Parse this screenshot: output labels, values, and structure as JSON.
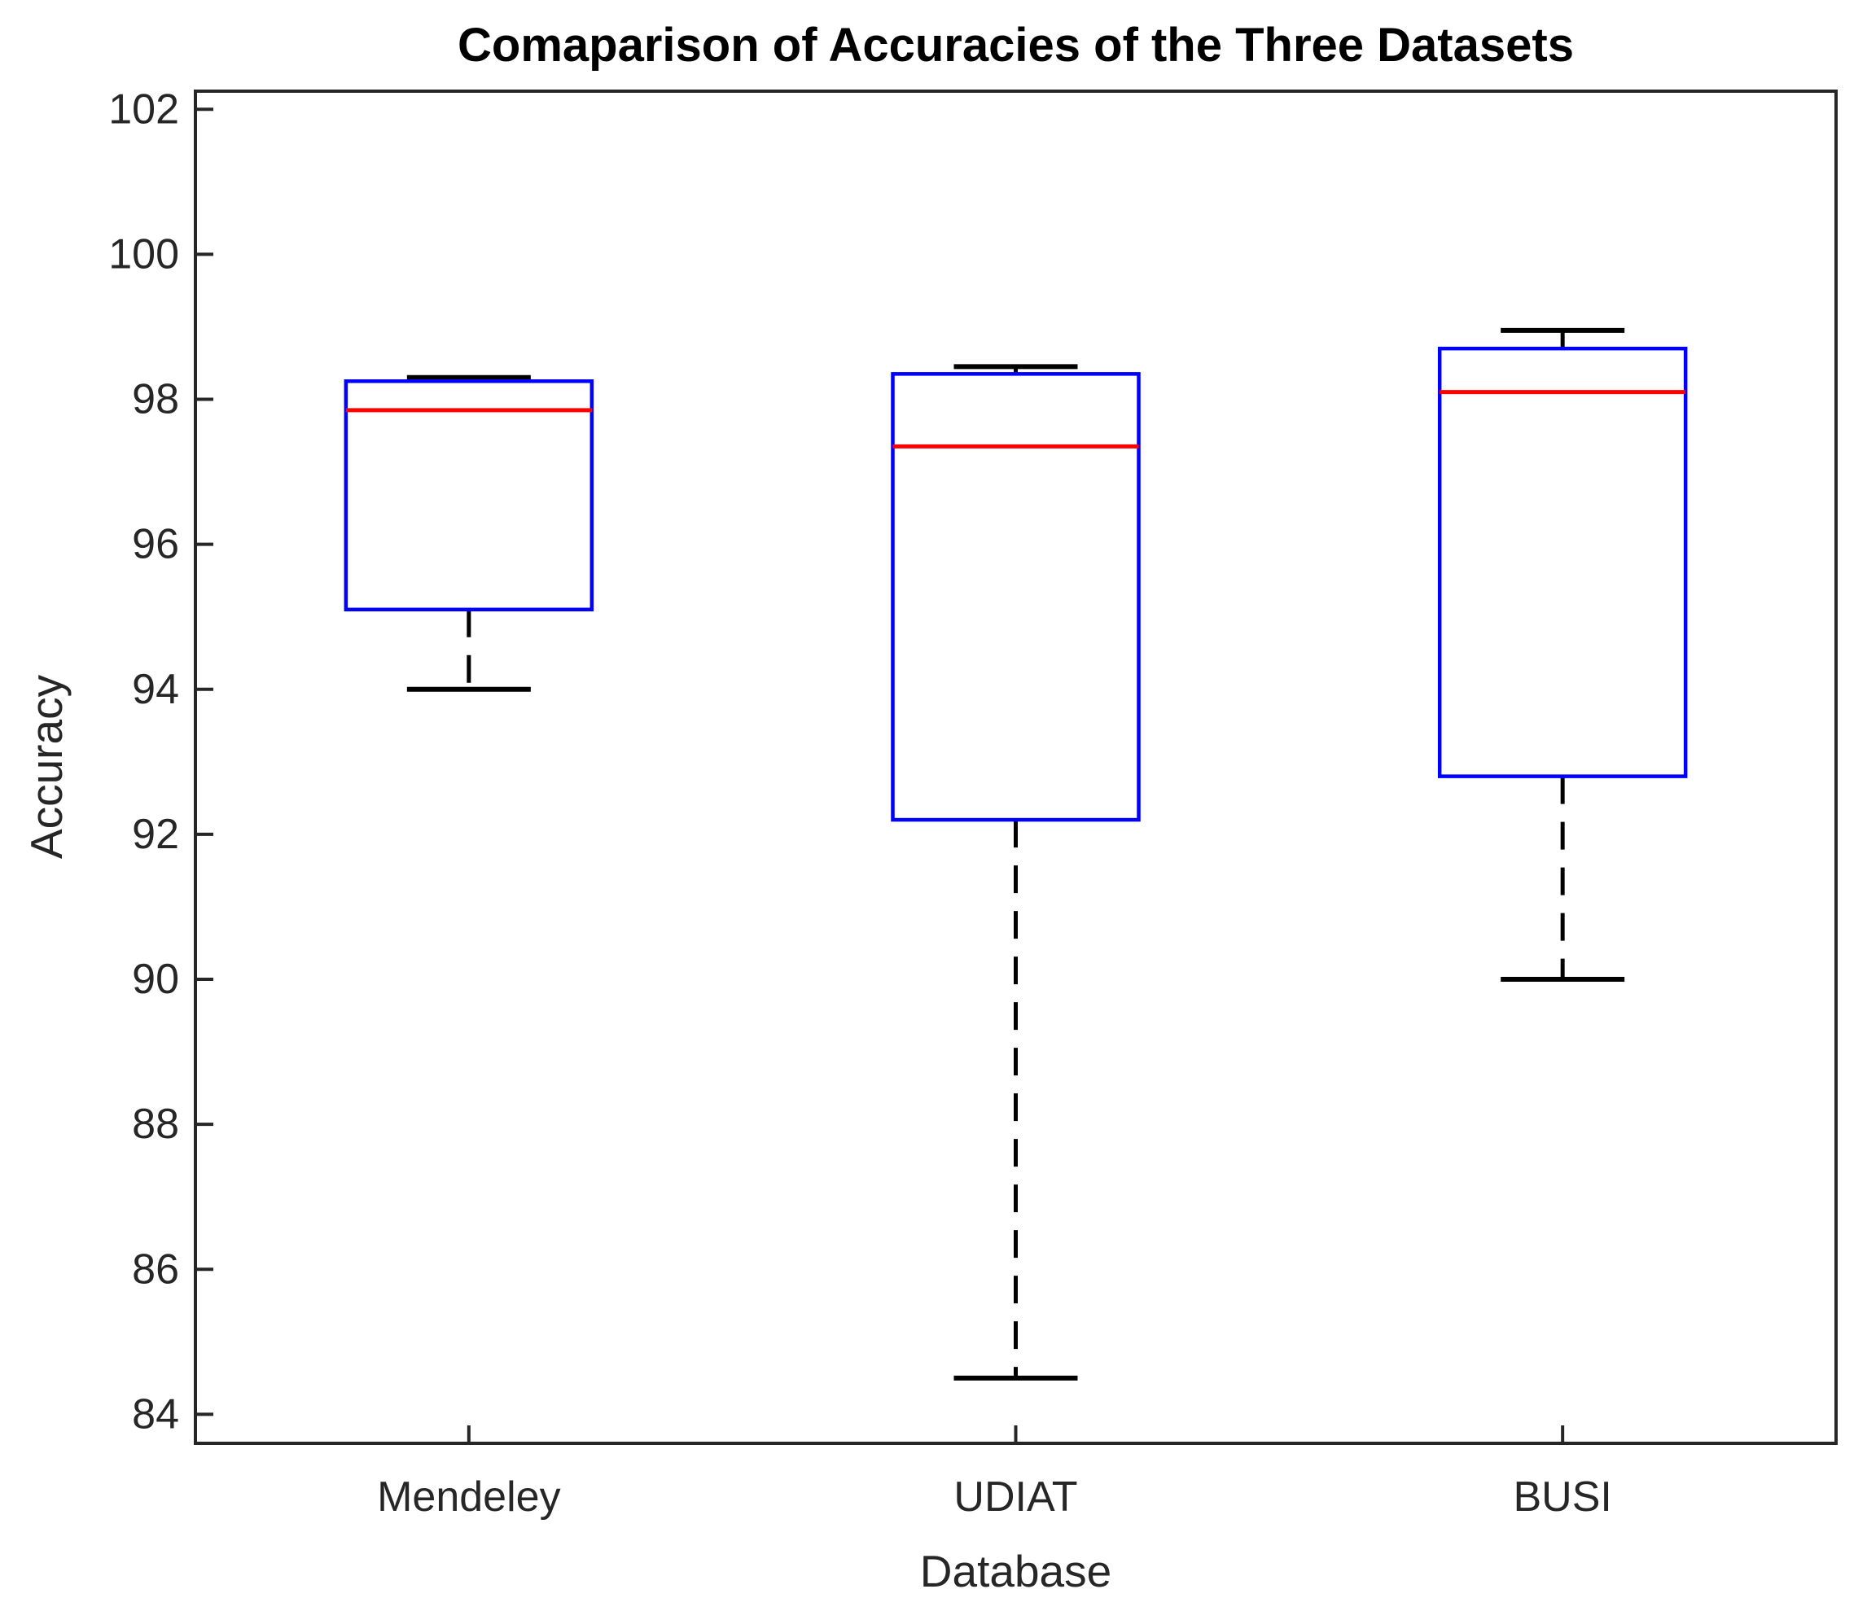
{
  "figure": {
    "background": "#FFFFFF"
  },
  "chart_data": {
    "type": "boxplot",
    "title": "Comaparison of Accuracies of the Three Datasets",
    "xlabel": "Database",
    "ylabel": "Accuracy",
    "categories": [
      "Mendeley",
      "UDIAT",
      "BUSI"
    ],
    "series": [
      {
        "name": "Mendeley",
        "whisker_low": 94.0,
        "q1": 95.1,
        "median": 97.85,
        "q3": 98.25,
        "whisker_high": 98.3
      },
      {
        "name": "UDIAT",
        "whisker_low": 84.5,
        "q1": 92.2,
        "median": 97.35,
        "q3": 98.35,
        "whisker_high": 98.45
      },
      {
        "name": "BUSI",
        "whisker_low": 90.0,
        "q1": 92.8,
        "median": 98.1,
        "q3": 98.7,
        "whisker_high": 98.95
      }
    ],
    "ylim": [
      83.6,
      102.25
    ],
    "yticks": [
      84,
      86,
      88,
      90,
      92,
      94,
      96,
      98,
      100,
      102
    ],
    "grid": false,
    "legend": "none",
    "colors": {
      "box": "#0000FF",
      "median": "#FF0000",
      "whisker": "#000000",
      "cap": "#000000",
      "axis": "#262626",
      "text": "#262626"
    }
  }
}
